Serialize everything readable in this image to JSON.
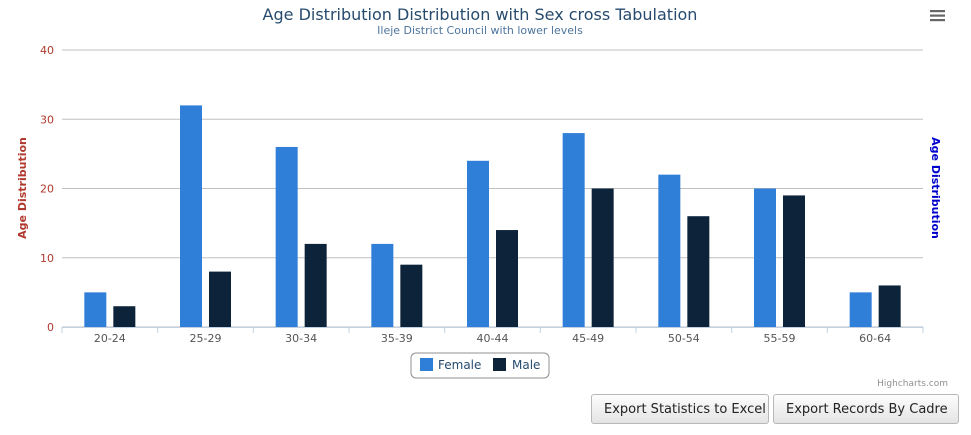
{
  "chart_data": {
    "type": "bar",
    "title": "Age Distribution Distribution with Sex cross Tabulation",
    "subtitle": "Ileje District Council with lower levels",
    "ylabel_left": "Age Distribution",
    "ylabel_right": "Age Distribution",
    "categories": [
      "20-24",
      "25-29",
      "30-34",
      "35-39",
      "40-44",
      "45-49",
      "50-54",
      "55-59",
      "60-64"
    ],
    "series": [
      {
        "name": "Female",
        "color": "#2f7ed8",
        "values": [
          5,
          32,
          26,
          12,
          24,
          28,
          22,
          20,
          5
        ]
      },
      {
        "name": "Male",
        "color": "#0d233a",
        "values": [
          3,
          8,
          12,
          9,
          14,
          20,
          16,
          19,
          6
        ]
      }
    ],
    "ylim": [
      0,
      40
    ],
    "yticks": [
      "0",
      "10",
      "20",
      "30",
      "40"
    ],
    "grid": true,
    "legend_position": "bottom-center"
  },
  "colors": {
    "left_axis_title": "#b03a2e",
    "right_axis_title": "#0000cc"
  },
  "credits": "Highcharts.com",
  "menu_icon": "hamburger-menu-icon",
  "buttons": {
    "export_statistics": "Export Statistics to Excel",
    "export_records": "Export Records By Cadre"
  }
}
